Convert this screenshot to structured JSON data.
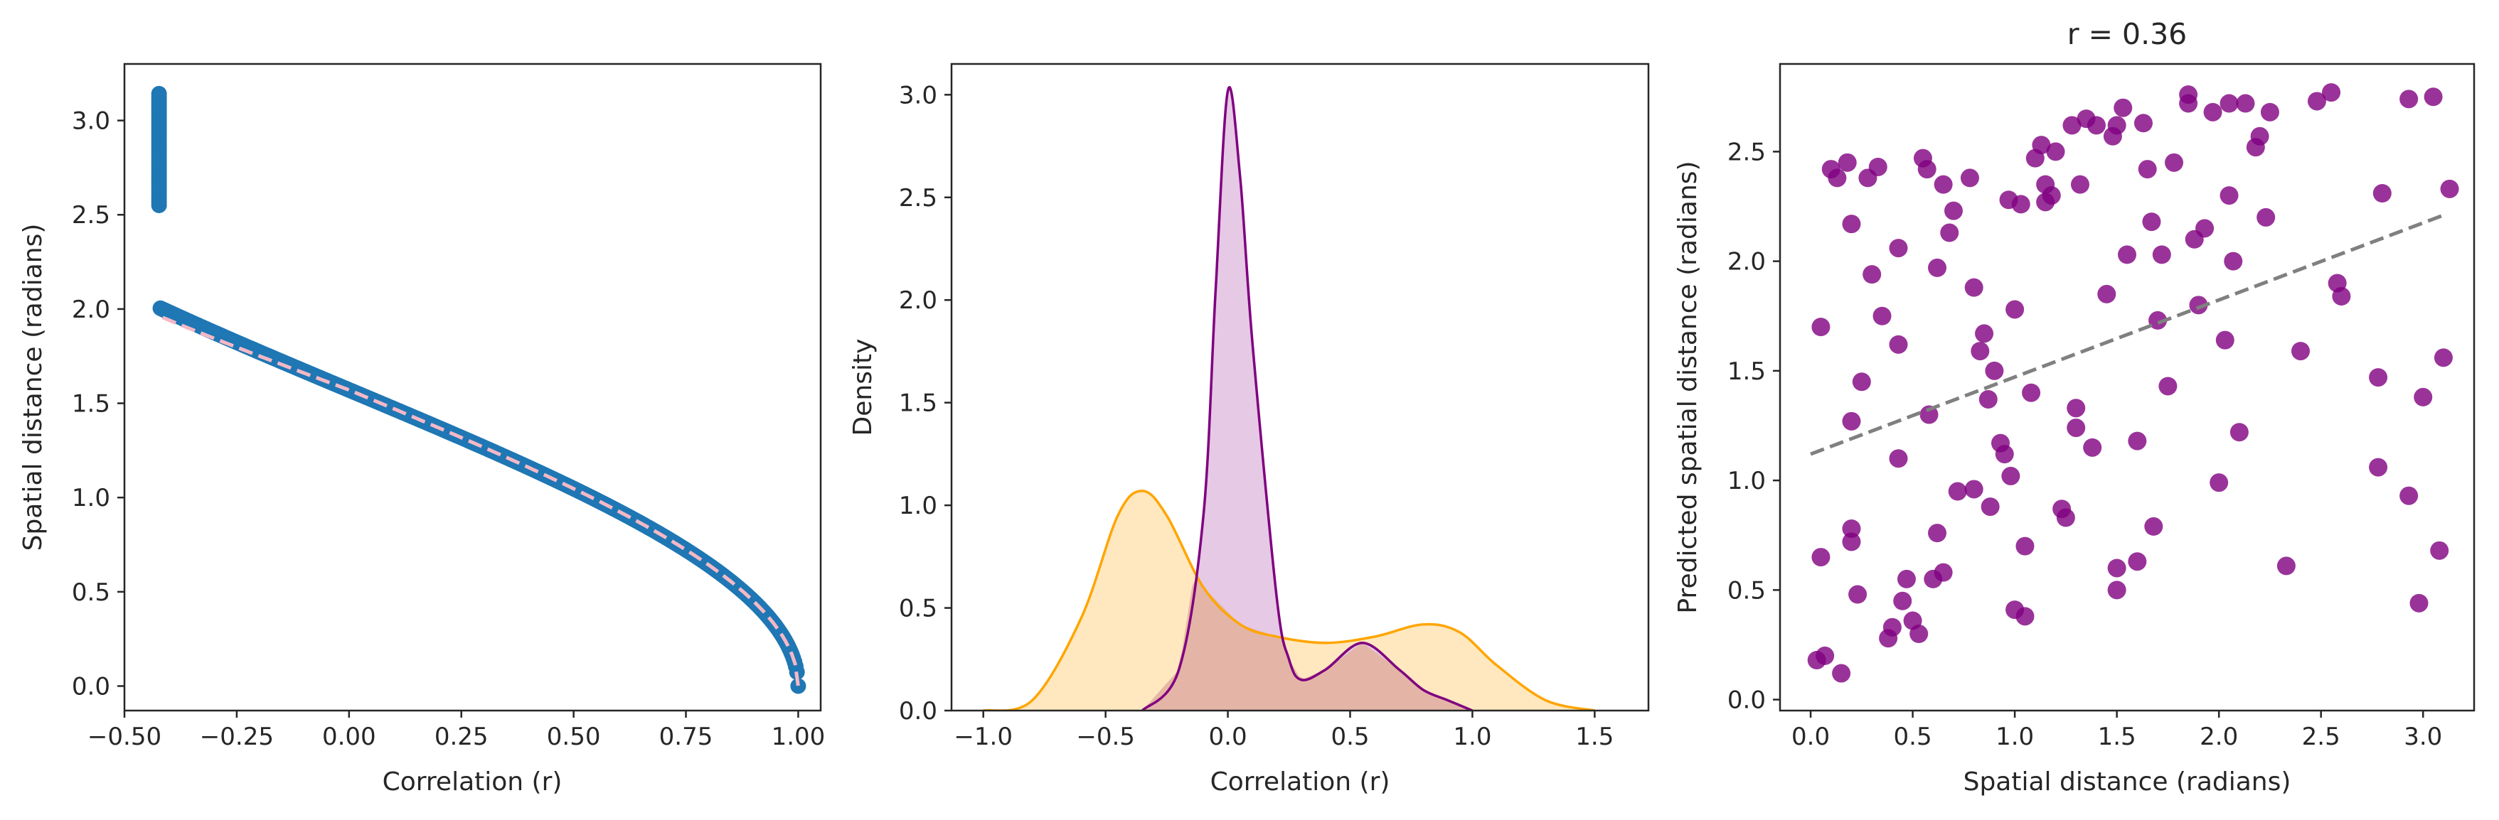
{
  "colors": {
    "scatter_blue": "#1f77b4",
    "fit_pink": "#f5b8c6",
    "purple": "#800080",
    "orange": "#ffa500",
    "purple_fill": "#e0c0e0",
    "orange_fill": "#ffe6b8",
    "overlap_fill": "#e3b2a0",
    "grey_line": "#808080",
    "axis": "#262626"
  },
  "chart_data": [
    {
      "type": "scatter",
      "xlabel": "Correlation (r)",
      "ylabel": "Spatial distance (radians)",
      "xlim": [
        -0.5,
        1.05
      ],
      "ylim": [
        -0.13,
        3.3
      ],
      "xticks": [
        "-0.50",
        "-0.25",
        "0.00",
        "0.25",
        "0.50",
        "0.75",
        "1.00"
      ],
      "yticks": [
        "0.0",
        "0.5",
        "1.0",
        "1.5",
        "2.0",
        "2.5",
        "3.0"
      ],
      "grid": false,
      "relation": "y = arccos(x) + 0.08*(x-0.5) over x from -0.42 to 1.0",
      "points": [
        [
          -0.42,
          3.14
        ],
        [
          -0.42,
          3.0
        ],
        [
          -0.42,
          2.8
        ],
        [
          -0.41,
          2.6
        ],
        [
          -0.4,
          2.4
        ],
        [
          -0.35,
          2.2
        ],
        [
          -0.25,
          1.93
        ],
        [
          0.0,
          1.37
        ],
        [
          0.25,
          1.1
        ],
        [
          0.5,
          0.85
        ],
        [
          0.75,
          0.58
        ],
        [
          0.9,
          0.35
        ],
        [
          0.97,
          0.2
        ],
        [
          1.0,
          0.02
        ]
      ],
      "series": [
        {
          "name": "",
          "style": "scatter",
          "color": "#1f77b4"
        },
        {
          "name": "",
          "style": "dashed-fit",
          "color": "#f5b8c6"
        }
      ]
    },
    {
      "type": "area",
      "xlabel": "Correlation (r)",
      "ylabel": "Density",
      "xlim": [
        -1.13,
        1.72
      ],
      "ylim": [
        0,
        3.15
      ],
      "xticks": [
        "-1.0",
        "-0.5",
        "0.0",
        "0.5",
        "1.0",
        "1.5"
      ],
      "yticks": [
        "0.0",
        "0.5",
        "1.0",
        "1.5",
        "2.0",
        "2.5",
        "3.0"
      ],
      "grid": false,
      "series": [
        {
          "name": "",
          "color": "#800080",
          "x": [
            -0.35,
            -0.2,
            -0.1,
            -0.05,
            0.0,
            0.05,
            0.1,
            0.2,
            0.25,
            0.3,
            0.4,
            0.55,
            0.7,
            0.8,
            0.9,
            1.0
          ],
          "values": [
            0.0,
            0.2,
            0.95,
            2.05,
            3.02,
            2.6,
            1.8,
            0.55,
            0.25,
            0.15,
            0.2,
            0.33,
            0.2,
            0.1,
            0.05,
            0.0
          ]
        },
        {
          "name": "",
          "color": "#ffa500",
          "x": [
            -1.0,
            -0.8,
            -0.6,
            -0.45,
            -0.35,
            -0.25,
            -0.1,
            0.05,
            0.2,
            0.4,
            0.6,
            0.8,
            0.95,
            1.1,
            1.3,
            1.5
          ],
          "values": [
            0.0,
            0.05,
            0.45,
            0.95,
            1.07,
            0.95,
            0.6,
            0.42,
            0.36,
            0.33,
            0.36,
            0.42,
            0.38,
            0.22,
            0.05,
            0.0
          ]
        }
      ]
    },
    {
      "type": "scatter",
      "title": "r = 0.36",
      "xlabel": "Spatial distance (radians)",
      "ylabel": "Predicted spatial distance (radians)",
      "xlim": [
        -0.15,
        3.25
      ],
      "ylim": [
        -0.05,
        2.9
      ],
      "xticks": [
        "0.0",
        "0.5",
        "1.0",
        "1.5",
        "2.0",
        "2.5",
        "3.0"
      ],
      "yticks": [
        "0.0",
        "0.5",
        "1.0",
        "1.5",
        "2.0",
        "2.5"
      ],
      "grid": false,
      "points": [
        [
          0.05,
          1.7
        ],
        [
          0.05,
          0.65
        ],
        [
          0.03,
          0.18
        ],
        [
          0.07,
          0.2
        ],
        [
          0.1,
          2.42
        ],
        [
          0.13,
          2.38
        ],
        [
          0.15,
          0.12
        ],
        [
          0.18,
          2.45
        ],
        [
          0.2,
          2.17
        ],
        [
          0.2,
          1.27
        ],
        [
          0.2,
          0.78
        ],
        [
          0.2,
          0.72
        ],
        [
          0.23,
          0.48
        ],
        [
          0.25,
          1.45
        ],
        [
          0.28,
          2.38
        ],
        [
          0.3,
          1.94
        ],
        [
          0.33,
          2.43
        ],
        [
          0.35,
          1.75
        ],
        [
          0.38,
          0.28
        ],
        [
          0.4,
          0.33
        ],
        [
          0.43,
          2.06
        ],
        [
          0.43,
          1.62
        ],
        [
          0.43,
          1.1
        ],
        [
          0.45,
          0.45
        ],
        [
          0.47,
          0.55
        ],
        [
          0.5,
          0.36
        ],
        [
          0.53,
          0.3
        ],
        [
          0.55,
          2.47
        ],
        [
          0.57,
          2.42
        ],
        [
          0.58,
          1.3
        ],
        [
          0.6,
          0.55
        ],
        [
          0.62,
          1.97
        ],
        [
          0.62,
          0.76
        ],
        [
          0.65,
          2.35
        ],
        [
          0.65,
          0.58
        ],
        [
          0.68,
          2.13
        ],
        [
          0.7,
          2.23
        ],
        [
          0.72,
          0.95
        ],
        [
          0.78,
          2.38
        ],
        [
          0.8,
          1.88
        ],
        [
          0.8,
          0.96
        ],
        [
          0.83,
          1.59
        ],
        [
          0.85,
          1.67
        ],
        [
          0.87,
          1.37
        ],
        [
          0.88,
          0.88
        ],
        [
          0.9,
          1.5
        ],
        [
          0.93,
          1.17
        ],
        [
          0.95,
          1.12
        ],
        [
          0.97,
          2.28
        ],
        [
          0.98,
          1.02
        ],
        [
          1.0,
          1.78
        ],
        [
          1.0,
          0.41
        ],
        [
          1.03,
          2.26
        ],
        [
          1.05,
          0.7
        ],
        [
          1.05,
          0.38
        ],
        [
          1.08,
          1.4
        ],
        [
          1.1,
          2.47
        ],
        [
          1.13,
          2.53
        ],
        [
          1.15,
          2.27
        ],
        [
          1.15,
          2.35
        ],
        [
          1.18,
          2.3
        ],
        [
          1.2,
          2.5
        ],
        [
          1.23,
          0.87
        ],
        [
          1.25,
          0.83
        ],
        [
          1.28,
          2.62
        ],
        [
          1.3,
          1.33
        ],
        [
          1.3,
          1.24
        ],
        [
          1.32,
          2.35
        ],
        [
          1.35,
          2.65
        ],
        [
          1.38,
          1.15
        ],
        [
          1.4,
          2.62
        ],
        [
          1.45,
          1.85
        ],
        [
          1.48,
          2.57
        ],
        [
          1.5,
          2.62
        ],
        [
          1.5,
          0.5
        ],
        [
          1.5,
          0.6
        ],
        [
          1.53,
          2.7
        ],
        [
          1.55,
          2.03
        ],
        [
          1.6,
          1.18
        ],
        [
          1.6,
          0.63
        ],
        [
          1.63,
          2.63
        ],
        [
          1.65,
          2.42
        ],
        [
          1.67,
          2.18
        ],
        [
          1.68,
          0.79
        ],
        [
          1.7,
          1.73
        ],
        [
          1.72,
          2.03
        ],
        [
          1.75,
          1.43
        ],
        [
          1.78,
          2.45
        ],
        [
          1.85,
          2.72
        ],
        [
          1.85,
          2.76
        ],
        [
          1.88,
          2.1
        ],
        [
          1.9,
          1.8
        ],
        [
          1.93,
          2.15
        ],
        [
          1.97,
          2.68
        ],
        [
          2.0,
          0.99
        ],
        [
          2.03,
          1.64
        ],
        [
          2.05,
          2.72
        ],
        [
          2.05,
          2.3
        ],
        [
          2.07,
          2.0
        ],
        [
          2.1,
          1.22
        ],
        [
          2.13,
          2.72
        ],
        [
          2.18,
          2.52
        ],
        [
          2.2,
          2.57
        ],
        [
          2.23,
          2.2
        ],
        [
          2.25,
          2.68
        ],
        [
          2.33,
          0.61
        ],
        [
          2.4,
          1.59
        ],
        [
          2.48,
          2.73
        ],
        [
          2.55,
          2.77
        ],
        [
          2.58,
          1.9
        ],
        [
          2.6,
          1.84
        ],
        [
          2.78,
          1.47
        ],
        [
          2.78,
          1.06
        ],
        [
          2.8,
          2.31
        ],
        [
          2.93,
          2.74
        ],
        [
          2.93,
          0.93
        ],
        [
          2.98,
          0.44
        ],
        [
          3.0,
          1.38
        ],
        [
          3.05,
          2.75
        ],
        [
          3.08,
          0.68
        ],
        [
          3.1,
          1.56
        ],
        [
          3.13,
          2.33
        ]
      ],
      "fit_line": {
        "x": [
          0.0,
          3.1
        ],
        "y": [
          1.12,
          2.21
        ]
      },
      "series": [
        {
          "name": "",
          "style": "scatter",
          "color": "#800080"
        },
        {
          "name": "",
          "style": "dashed-fit",
          "color": "#808080"
        }
      ]
    }
  ]
}
